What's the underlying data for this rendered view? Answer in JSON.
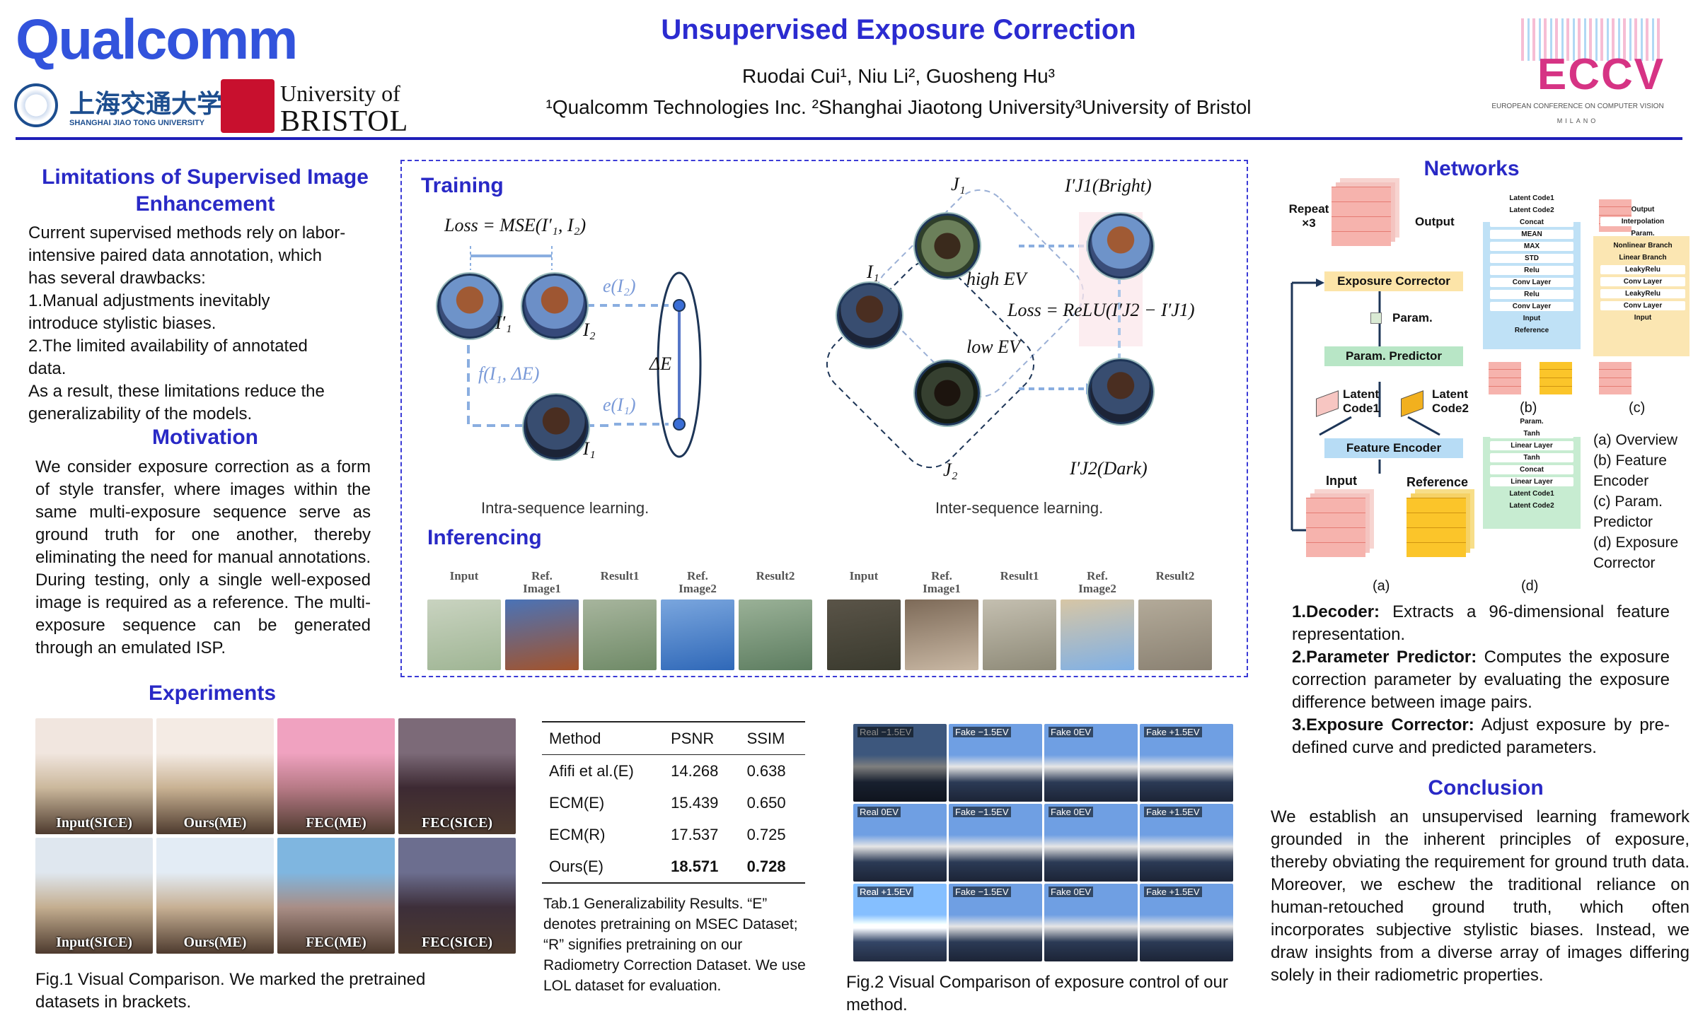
{
  "header": {
    "title": "Unsupervised Exposure Correction",
    "authors": "Ruodai Cui¹, Niu Li², Guosheng Hu³",
    "affiliations": "¹Qualcomm Technologies Inc. ²Shanghai Jiaotong University³University of Bristol",
    "logo_qualcomm": "Qualcomm",
    "logo_sjtu_cn": "上海交通大学",
    "logo_sjtu_en": "SHANGHAI JIAO TONG UNIVERSITY",
    "logo_bristol_1": "University of",
    "logo_bristol_2": "BRISTOL",
    "logo_eccv": "ECCV",
    "logo_eccv_sub": "EUROPEAN CONFERENCE ON COMPUTER VISION",
    "logo_eccv_city": "MILANO"
  },
  "limitations": {
    "title": "Limitations of Supervised Image Enhancement",
    "lines": [
      "Current supervised methods rely on labor-",
      "intensive paired data annotation, which",
      "has several drawbacks:",
      "1.Manual adjustments inevitably",
      "introduce stylistic biases.",
      "2.The limited availability of annotated",
      "data.",
      "As a result, these limitations reduce the",
      "generalizability of the models."
    ]
  },
  "motivation": {
    "title": "Motivation",
    "text": "We consider exposure correction as a form of style transfer, where images within the same multi-exposure sequence serve as ground truth for one another, thereby eliminating the need for manual annotations. During testing, only a single well-exposed image is required as a reference. The multi-exposure sequence can be generated through an emulated ISP."
  },
  "training": {
    "title": "Training",
    "loss1": "Loss = MSE(I′₁, I₂)",
    "i1p": "I′₁",
    "i2": "I₂",
    "i1": "I₁",
    "e_i2": "e(I₂)",
    "e_i1": "e(I₁)",
    "f_label": "f(I₁, ΔE)",
    "delta_e": "ΔE",
    "caption1": "Intra-sequence learning.",
    "j1": "J₁",
    "j2": "J₂",
    "i1b": "I₁",
    "high_ev": "high EV",
    "low_ev": "low EV",
    "bright": "I′J1(Bright)",
    "dark": "I′J2(Dark)",
    "loss2": "Loss = ReLU(I′J2 − I′J1)",
    "caption2": "Inter-sequence learning."
  },
  "inferencing": {
    "title": "Inferencing",
    "labels": [
      "Input",
      "Ref.\nImage1",
      "Result1",
      "Ref.\nImage2",
      "Result2",
      "Input",
      "Ref.\nImage1",
      "Result1",
      "Ref.\nImage2",
      "Result2"
    ]
  },
  "experiments": {
    "title": "Experiments",
    "fig1_labels": [
      "Input(SICE)",
      "Ours(ME)",
      "FEC(ME)",
      "FEC(SICE)",
      "Input(SICE)",
      "Ours(ME)",
      "FEC(ME)",
      "FEC(SICE)"
    ],
    "fig1_caption": "Fig.1 Visual Comparison. We marked the pretrained datasets in brackets.",
    "table": {
      "headers": [
        "Method",
        "PSNR",
        "SSIM"
      ],
      "rows": [
        [
          "Afifi et al.(E)",
          "14.268",
          "0.638"
        ],
        [
          "ECM(E)",
          "15.439",
          "0.650"
        ],
        [
          "ECM(R)",
          "17.537",
          "0.725"
        ],
        [
          "Ours(E)",
          "18.571",
          "0.728"
        ]
      ]
    },
    "table_caption": "Tab.1 Generalizability Results. “E” denotes pretraining on MSEC Dataset; “R” signifies pretraining on our Radiometry Correction Dataset. We use LOL dataset for evaluation.",
    "fig2_labels": [
      "Real −1.5EV",
      "Fake −1.5EV",
      "Fake 0EV",
      "Fake +1.5EV",
      "Real 0EV",
      "Fake −1.5EV",
      "Fake 0EV",
      "Fake +1.5EV",
      "Real +1.5EV",
      "Fake −1.5EV",
      "Fake 0EV",
      "Fake +1.5EV"
    ],
    "fig2_caption": "Fig.2 Visual Comparison of exposure control of our method."
  },
  "networks": {
    "title": "Networks",
    "repeat": "Repeat ×3",
    "output": "Output",
    "exposure_corrector": "Exposure Corrector",
    "param": "Param.",
    "param_predictor": "Param. Predictor",
    "latent1": "Latent Code1",
    "latent2": "Latent Code2",
    "feature_encoder": "Feature Encoder",
    "input": "Input",
    "reference": "Reference",
    "sub_a": "(a)",
    "sub_b": "(b)",
    "sub_c": "(c)",
    "sub_d": "(d)",
    "b_items": [
      "Latent Code1",
      "Latent Code2",
      "Concat",
      "MEAN",
      "MAX",
      "STD",
      "Relu",
      "Conv Layer",
      "Relu",
      "Conv Layer",
      "Input",
      "Reference"
    ],
    "c_items": [
      "Output",
      "Interpolation",
      "Param.",
      "Nonlinear Branch",
      "Linear Branch",
      "LeakyRelu",
      "Conv Layer",
      "LeakyRelu",
      "Conv Layer",
      "Input"
    ],
    "d_items": [
      "Param.",
      "Tanh",
      "Linear Layer",
      "Tanh",
      "Concat",
      "Linear Layer",
      "Latent Code1",
      "Latent Code2"
    ],
    "legend": [
      "(a) Overview",
      "(b) Feature Encoder",
      "(c) Param. Predictor",
      "(d) Exposure Corrector"
    ],
    "desc": [
      {
        "head": "1.Decoder:",
        "text": " Extracts a 96-dimensional feature representation."
      },
      {
        "head": "2.Parameter Predictor:",
        "text": " Computes the exposure correction parameter by evaluating the exposure difference between image pairs."
      },
      {
        "head": "3.Exposure Corrector:",
        "text": " Adjust exposure by pre-defined curve and predicted parameters."
      }
    ]
  },
  "conclusion": {
    "title": "Conclusion",
    "text": "We establish an unsupervised learning framework grounded in the inherent principles of exposure, thereby obviating the requirement for ground truth data. Moreover, we eschew the traditional reliance on human-retouched ground truth, which often incorporates subjective stylistic biases. Instead, we draw insights from a diverse array of images differing solely in their radiometric properties."
  },
  "colors": {
    "accent": "#2929c6",
    "rule": "#1f1fb8",
    "dash": "#3a3ad6"
  }
}
